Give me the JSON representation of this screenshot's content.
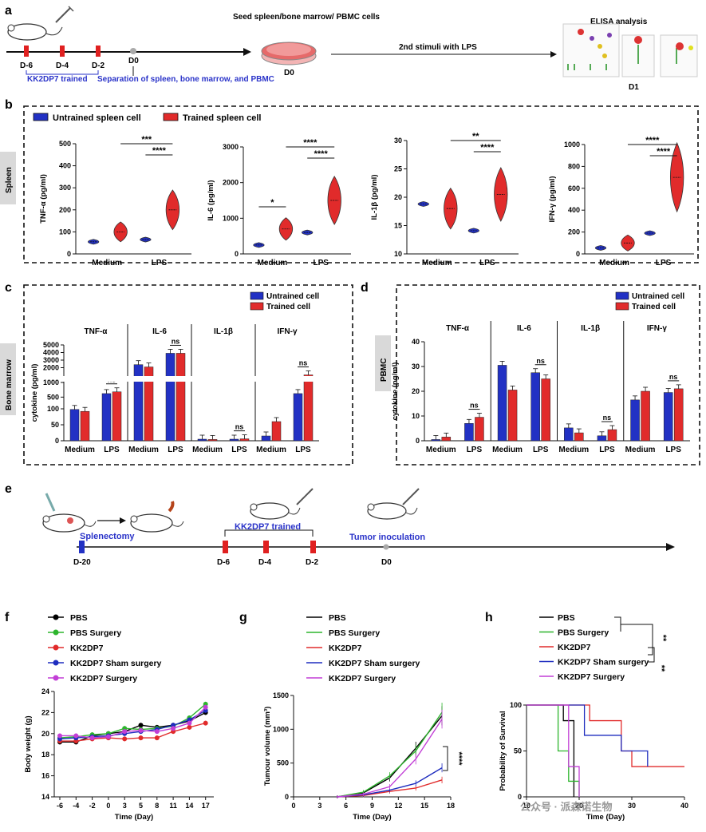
{
  "panel_letters": [
    "a",
    "b",
    "c",
    "d",
    "e",
    "f",
    "g",
    "h"
  ],
  "a": {
    "days": [
      "D-6",
      "D-4",
      "D-2",
      "D0"
    ],
    "trained": "KK2DP7 trained",
    "separation": "Separation of spleen, bone marrow, and PBMC",
    "seed": "Seed spleen/bone marrow/ PBMC cells",
    "seed_day": "D0",
    "second": "2nd stimuli with LPS",
    "elisa": "ELISA analysis",
    "elisa_day": "D1"
  },
  "e": {
    "days": [
      "D-20",
      "D-6",
      "D-4",
      "D-2",
      "D0"
    ],
    "splenectomy": "Splenectomy",
    "trained": "KK2DP7 trained",
    "tumor": "Tumor inoculation"
  },
  "watermark": "公众号 · 派森诺生物",
  "chart_data": [
    {
      "id": "b-tnf",
      "type": "violin",
      "row_label": "Spleen",
      "ylabel": "TNF-α (pg/ml)",
      "ylim": [
        0,
        500
      ],
      "yticks": [
        0,
        100,
        200,
        300,
        400,
        500
      ],
      "categories": [
        "Medium",
        "LPS"
      ],
      "legend": [
        "Untrained spleen cell",
        "Trained spleen cell"
      ],
      "series": [
        {
          "name": "Untrained spleen cell",
          "values": [
            55,
            65
          ]
        },
        {
          "name": "Trained spleen cell",
          "values": [
            100,
            200
          ]
        }
      ],
      "annotations": [
        "***",
        "****"
      ]
    },
    {
      "id": "b-il6",
      "type": "violin",
      "ylabel": "IL-6 (pg/ml)",
      "ylim": [
        0,
        3000
      ],
      "yticks": [
        0,
        1000,
        2000,
        3000
      ],
      "categories": [
        "Medium",
        "LPS"
      ],
      "series": [
        {
          "name": "Untrained spleen cell",
          "values": [
            250,
            600
          ]
        },
        {
          "name": "Trained spleen cell",
          "values": [
            700,
            1500
          ]
        }
      ],
      "annotations": [
        "*",
        "****",
        "****"
      ]
    },
    {
      "id": "b-il1b",
      "type": "violin",
      "ylabel": "IL-1β (pg/ml)",
      "ylim": [
        10,
        30
      ],
      "yticks": [
        10,
        15,
        20,
        25,
        30
      ],
      "categories": [
        "Medium",
        "LPS"
      ],
      "series": [
        {
          "name": "Untrained spleen cell",
          "values": [
            18.8,
            14.1
          ]
        },
        {
          "name": "Trained spleen cell",
          "values": [
            18,
            20.5
          ]
        }
      ],
      "annotations": [
        "**",
        "****"
      ]
    },
    {
      "id": "b-ifng",
      "type": "violin",
      "ylabel": "IFN-γ (pg/ml)",
      "ylim": [
        0,
        1000
      ],
      "yticks": [
        0,
        200,
        400,
        600,
        800,
        1000
      ],
      "categories": [
        "Medium",
        "LPS"
      ],
      "series": [
        {
          "name": "Untrained spleen cell",
          "values": [
            55,
            190
          ]
        },
        {
          "name": "Trained spleen cell",
          "values": [
            100,
            700
          ]
        }
      ],
      "annotations": [
        "****",
        "****"
      ]
    },
    {
      "id": "c",
      "type": "bar",
      "row_label": "Bone marrow",
      "ylabel": "cytokine (pg/ml)",
      "yticks_lower": [
        0,
        50,
        100,
        500,
        1000
      ],
      "yticks_upper": [
        2000,
        3000,
        4000,
        5000
      ],
      "groups": [
        "TNF-α",
        "IL-6",
        "IL-1β",
        "IFN-γ"
      ],
      "categories": [
        "Medium",
        "LPS",
        "Medium",
        "LPS",
        "Medium",
        "LPS",
        "Medium",
        "LPS"
      ],
      "legend": [
        "Untrained cell",
        "Trained cell"
      ],
      "series": [
        {
          "name": "Untrained cell",
          "values": [
            98,
            620,
            2400,
            3900,
            5,
            5,
            15,
            620
          ]
        },
        {
          "name": "Trained cell",
          "values": [
            92,
            680,
            2100,
            3900,
            4,
            6,
            60,
            1050
          ]
        }
      ],
      "annotations": [
        "ns",
        "ns",
        "ns",
        "ns"
      ]
    },
    {
      "id": "d",
      "type": "bar",
      "row_label": "PBMC",
      "ylabel": "cytokine (pg/ml)",
      "ylim": [
        0,
        40
      ],
      "yticks": [
        0,
        10,
        20,
        30,
        40
      ],
      "groups": [
        "TNF-α",
        "IL-6",
        "IL-1β",
        "IFN-γ"
      ],
      "categories": [
        "Medium",
        "LPS",
        "Medium",
        "LPS",
        "Medium",
        "LPS",
        "Medium",
        "LPS"
      ],
      "legend": [
        "Untrained cell",
        "Trained cell"
      ],
      "series": [
        {
          "name": "Untrained cell",
          "values": [
            0.5,
            7,
            30.5,
            27.5,
            5.2,
            2,
            16.5,
            19.5
          ]
        },
        {
          "name": "Trained cell",
          "values": [
            1.5,
            9.5,
            20.5,
            25,
            3.2,
            4.5,
            20,
            21
          ]
        }
      ],
      "annotations": [
        "ns",
        "ns",
        "ns",
        "ns"
      ]
    },
    {
      "id": "f",
      "type": "line",
      "xlabel": "Time (Day)",
      "ylabel": "Body weight (g)",
      "ylim": [
        14,
        24
      ],
      "yticks": [
        14,
        16,
        18,
        20,
        22,
        24
      ],
      "x": [
        -6,
        -4,
        -2,
        0,
        3,
        5,
        8,
        11,
        14,
        17
      ],
      "series": [
        {
          "name": "PBS",
          "color": "#000000",
          "values": [
            19.2,
            19.2,
            19.8,
            20.0,
            20.2,
            20.8,
            20.6,
            20.8,
            21.2,
            22.0
          ]
        },
        {
          "name": "PBS Surgery",
          "color": "#2db52d",
          "values": [
            19.6,
            19.7,
            19.9,
            20.0,
            20.5,
            20.4,
            20.5,
            20.7,
            21.5,
            22.8
          ]
        },
        {
          "name": "KK2DP7",
          "color": "#e12b2b",
          "values": [
            19.3,
            19.3,
            19.5,
            19.6,
            19.5,
            19.6,
            19.6,
            20.2,
            20.6,
            21.0
          ]
        },
        {
          "name": "KK2DP7 Sham surgery",
          "color": "#1f2dbf",
          "values": [
            19.5,
            19.6,
            19.7,
            19.8,
            20.0,
            20.2,
            20.4,
            20.8,
            21.3,
            22.2
          ]
        },
        {
          "name": "KK2DP7 Surgery",
          "color": "#c23fd6",
          "values": [
            19.8,
            19.8,
            19.6,
            19.7,
            20.2,
            20.3,
            20.2,
            20.5,
            21.0,
            22.5
          ]
        }
      ]
    },
    {
      "id": "g",
      "type": "line",
      "xlabel": "Time (Day)",
      "ylabel": "Tumour volume (mm³)",
      "xlim": [
        0,
        18
      ],
      "xticks": [
        0,
        3,
        6,
        9,
        12,
        15,
        18
      ],
      "ylim": [
        0,
        1500
      ],
      "yticks": [
        0,
        500,
        1000,
        1500
      ],
      "x": [
        5,
        8,
        11,
        14,
        17
      ],
      "series": [
        {
          "name": "PBS",
          "color": "#000000",
          "values": [
            0,
            60,
            280,
            720,
            1200
          ]
        },
        {
          "name": "PBS Surgery",
          "color": "#2db52d",
          "values": [
            0,
            70,
            310,
            680,
            1250
          ]
        },
        {
          "name": "KK2DP7",
          "color": "#e12b2b",
          "values": [
            0,
            20,
            80,
            130,
            250
          ]
        },
        {
          "name": "KK2DP7 Sham surgery",
          "color": "#1f2dbf",
          "values": [
            0,
            30,
            100,
            200,
            430
          ]
        },
        {
          "name": "KK2DP7 Surgery",
          "color": "#c23fd6",
          "values": [
            0,
            40,
            150,
            560,
            1150
          ]
        }
      ],
      "annotations": [
        "****"
      ]
    },
    {
      "id": "h",
      "type": "survival",
      "xlabel": "Time (Day)",
      "ylabel": "Probability of Survival",
      "xlim": [
        10,
        40
      ],
      "xticks": [
        10,
        20,
        30,
        40
      ],
      "ylim": [
        0,
        100
      ],
      "yticks": [
        0,
        50,
        100
      ],
      "series": [
        {
          "name": "PBS",
          "color": "#000000",
          "steps": [
            [
              10,
              100
            ],
            [
              17,
              100
            ],
            [
              17,
              83
            ],
            [
              19,
              83
            ],
            [
              19,
              0
            ]
          ]
        },
        {
          "name": "PBS Surgery",
          "color": "#2db52d",
          "steps": [
            [
              10,
              100
            ],
            [
              16,
              100
            ],
            [
              16,
              50
            ],
            [
              18,
              50
            ],
            [
              18,
              17
            ],
            [
              20,
              17
            ],
            [
              20,
              0
            ]
          ]
        },
        {
          "name": "KK2DP7",
          "color": "#e12b2b",
          "steps": [
            [
              10,
              100
            ],
            [
              19,
              100
            ],
            [
              19,
              100
            ],
            [
              22,
              100
            ],
            [
              22,
              83
            ],
            [
              28,
              83
            ],
            [
              28,
              50
            ],
            [
              30,
              50
            ],
            [
              30,
              33
            ],
            [
              40,
              33
            ]
          ]
        },
        {
          "name": "KK2DP7 Sham surgery",
          "color": "#1f2dbf",
          "steps": [
            [
              10,
              100
            ],
            [
              21,
              100
            ],
            [
              21,
              67
            ],
            [
              28,
              67
            ],
            [
              28,
              50
            ],
            [
              33,
              50
            ],
            [
              33,
              33
            ]
          ]
        },
        {
          "name": "KK2DP7 Surgery",
          "color": "#c23fd6",
          "steps": [
            [
              10,
              100
            ],
            [
              18,
              100
            ],
            [
              18,
              33
            ],
            [
              20,
              33
            ],
            [
              20,
              0
            ]
          ]
        }
      ],
      "annotations": [
        "**",
        "**"
      ]
    }
  ]
}
